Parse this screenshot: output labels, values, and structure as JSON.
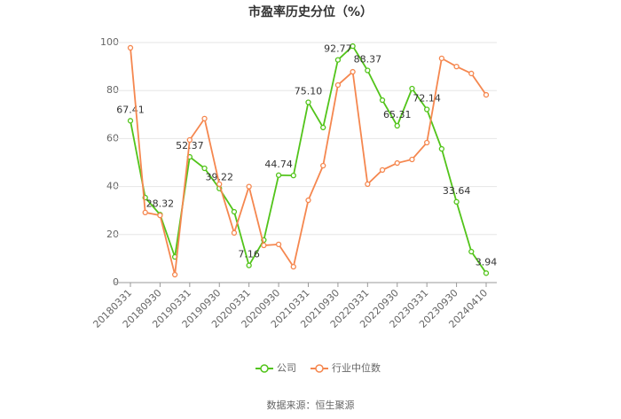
{
  "chart_data": {
    "type": "line",
    "title": "市盈率历史分位（%）",
    "categories": [
      "20180331",
      null,
      "20180930",
      null,
      "20190331",
      null,
      "20190930",
      null,
      "20200331",
      null,
      "20200930",
      null,
      "20210331",
      null,
      "20210930",
      null,
      "20220331",
      null,
      "20220930",
      null,
      "20230331",
      null,
      "20230930",
      null,
      "20240410"
    ],
    "series": [
      {
        "name": "公司",
        "color": "#52c41a",
        "values": [
          67.41,
          35.4,
          28.32,
          10.7,
          52.37,
          47.6,
          39.22,
          29.5,
          7.16,
          17.7,
          44.74,
          44.6,
          75.1,
          64.6,
          92.77,
          98.5,
          88.37,
          76,
          65.31,
          80.8,
          72.14,
          55.7,
          33.64,
          12.9,
          3.94
        ],
        "value_labels": [
          "67.41",
          null,
          "28.32",
          null,
          "52.37",
          null,
          "39.22",
          null,
          "7.16",
          null,
          "44.74",
          null,
          "75.10",
          null,
          "92.77",
          null,
          "88.37",
          null,
          "65.31",
          null,
          "72.14",
          null,
          "33.64",
          null,
          "3.94"
        ]
      },
      {
        "name": "行业中位数",
        "color": "#f5874f",
        "values": [
          97.8,
          29.2,
          28,
          3.3,
          59.4,
          68.3,
          41,
          20.7,
          40,
          15.5,
          15.9,
          6.6,
          34.3,
          48.7,
          82.3,
          87.8,
          41,
          46.9,
          49.8,
          51.3,
          58.3,
          93.4,
          90,
          87.1,
          78.2
        ]
      }
    ],
    "ylim": [
      0,
      100
    ],
    "yticks": [
      0,
      20,
      40,
      60,
      80,
      100
    ],
    "grid": true,
    "legend": "bottom",
    "source": "数据来源：恒生聚源"
  }
}
